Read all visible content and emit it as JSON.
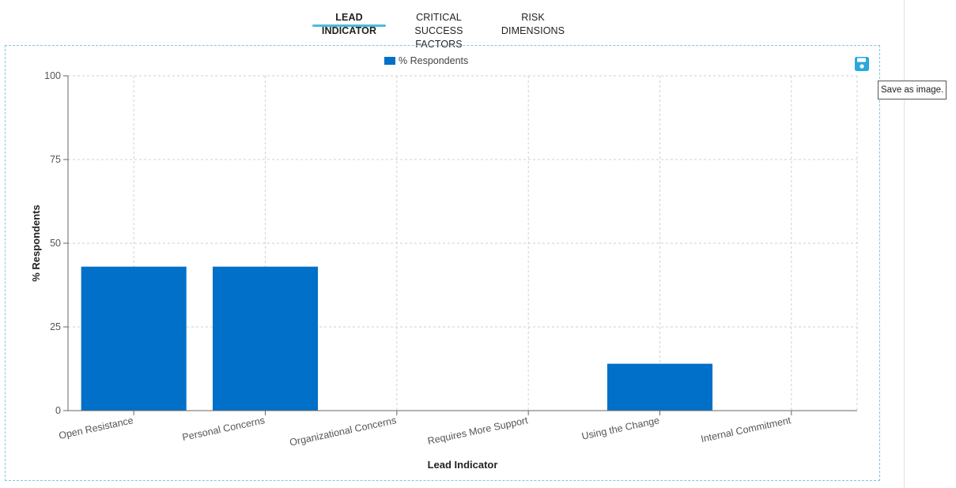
{
  "tabs": [
    {
      "label": "LEAD INDICATOR",
      "active": true
    },
    {
      "label": "CRITICAL SUCCESS FACTORS",
      "active": false
    },
    {
      "label": "RISK DIMENSIONS",
      "active": false
    }
  ],
  "toolbar": {
    "save_icon": "floppy-disk-icon",
    "save_tooltip": "Save as image."
  },
  "colors": {
    "bar": "#0070c9",
    "accent": "#4bbcdc",
    "save_icon": "#29a8dc"
  },
  "chart_data": {
    "type": "bar",
    "categories": [
      "Open Resistance",
      "Personal Concerns",
      "Organizational Concerns",
      "Requires More Support",
      "Using the Change",
      "Internal Commitment"
    ],
    "series": [
      {
        "name": "% Respondents",
        "values": [
          43,
          43,
          0,
          0,
          14,
          0
        ]
      }
    ],
    "xlabel": "Lead Indicator",
    "ylabel": "% Respondents",
    "ylim": [
      0,
      100
    ],
    "yticks": [
      0,
      25,
      50,
      75,
      100
    ],
    "grid": true,
    "legend": "top-center"
  }
}
